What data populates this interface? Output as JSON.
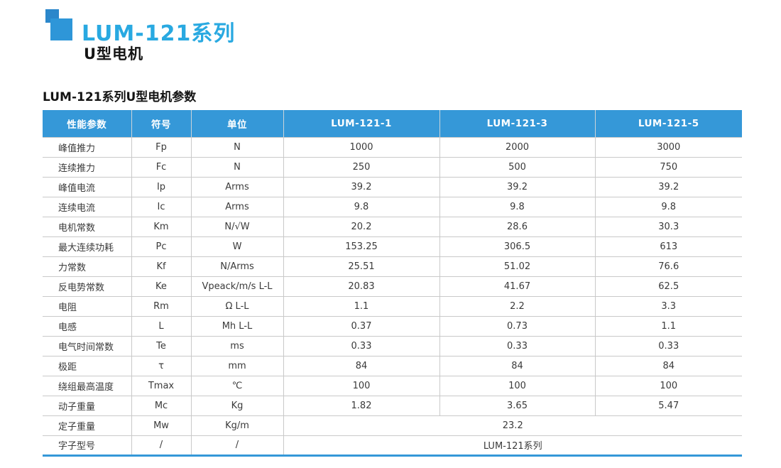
{
  "page": {
    "series_title": "LUM-121系列",
    "subtitle": "U型电机",
    "table_title": "LUM-121系列U型电机参数"
  },
  "colors": {
    "accent_blue": "#3598d8",
    "title_cyan": "#29a9e1",
    "square_dark_blue": "#2b87cb",
    "square_light_blue": "#2e96d8",
    "grid_gray": "#c9c9c9"
  },
  "table": {
    "headers": [
      "性能参数",
      "符号",
      "单位",
      "LUM-121-1",
      "LUM-121-3",
      "LUM-121-5"
    ],
    "rows": [
      {
        "param": "峰值推力",
        "symbol": "Fp",
        "unit": "N",
        "values": [
          "1000",
          "2000",
          "3000"
        ]
      },
      {
        "param": "连续推力",
        "symbol": "Fc",
        "unit": "N",
        "values": [
          "250",
          "500",
          "750"
        ]
      },
      {
        "param": "峰值电流",
        "symbol": "Ip",
        "unit": "Arms",
        "values": [
          "39.2",
          "39.2",
          "39.2"
        ]
      },
      {
        "param": "连续电流",
        "symbol": "Ic",
        "unit": "Arms",
        "values": [
          "9.8",
          "9.8",
          "9.8"
        ]
      },
      {
        "param": "电机常数",
        "symbol": "Km",
        "unit": "N/√W",
        "values": [
          "20.2",
          "28.6",
          "30.3"
        ]
      },
      {
        "param": "最大连续功耗",
        "symbol": "Pc",
        "unit": "W",
        "values": [
          "153.25",
          "306.5",
          "613"
        ]
      },
      {
        "param": "力常数",
        "symbol": "Kf",
        "unit": "N/Arms",
        "values": [
          "25.51",
          "51.02",
          "76.6"
        ]
      },
      {
        "param": "反电势常数",
        "symbol": "Ke",
        "unit": "Vpeack/m/s L-L",
        "values": [
          "20.83",
          "41.67",
          "62.5"
        ]
      },
      {
        "param": "电阻",
        "symbol": "Rm",
        "unit": "Ω L-L",
        "values": [
          "1.1",
          "2.2",
          "3.3"
        ]
      },
      {
        "param": "电感",
        "symbol": "L",
        "unit": "Mh L-L",
        "values": [
          "0.37",
          "0.73",
          "1.1"
        ]
      },
      {
        "param": "电气时间常数",
        "symbol": "Te",
        "unit": "ms",
        "values": [
          "0.33",
          "0.33",
          "0.33"
        ]
      },
      {
        "param": "极距",
        "symbol": "τ",
        "unit": "mm",
        "values": [
          "84",
          "84",
          "84"
        ]
      },
      {
        "param": "绕组最高温度",
        "symbol": "Tmax",
        "unit": "℃",
        "values": [
          "100",
          "100",
          "100"
        ]
      },
      {
        "param": "动子重量",
        "symbol": "Mc",
        "unit": "Kg",
        "values": [
          "1.82",
          "3.65",
          "5.47"
        ]
      },
      {
        "param": "定子重量",
        "symbol": "Mw",
        "unit": "Kg/m",
        "merged": "23.2"
      },
      {
        "param": "字子型号",
        "symbol": "/",
        "unit": "/",
        "merged": "LUM-121系列"
      }
    ]
  }
}
